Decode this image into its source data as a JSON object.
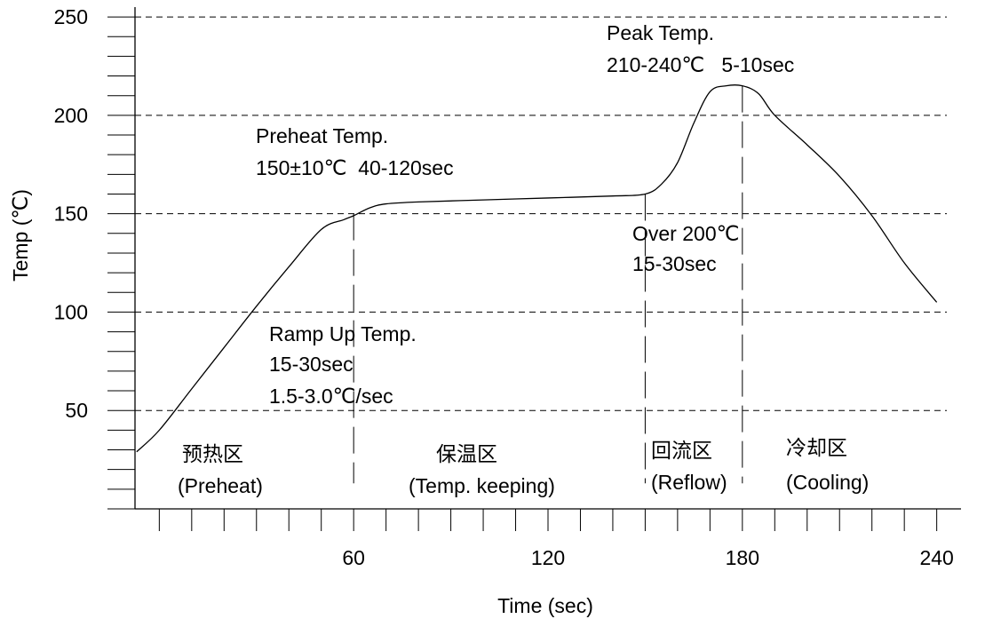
{
  "chart_data": {
    "type": "line",
    "xlabel": "Time (sec)",
    "ylabel": "Temp (℃)",
    "xlim": [
      -7.5,
      247.5
    ],
    "ylim": [
      0,
      255
    ],
    "x_ticks": [
      60,
      120,
      180,
      240
    ],
    "x_tick_labels": [
      "60",
      "120",
      "180",
      "240"
    ],
    "y_ticks": [
      50,
      100,
      150,
      200,
      250
    ],
    "y_tick_labels": [
      "50",
      "100",
      "150",
      "200",
      "250"
    ],
    "x_minor_step": 10,
    "y_minor_step": 10,
    "grid": "dashed horizontal lines at 50, 100, 150, 200, 250",
    "series": [
      {
        "x": [
          -7,
          0,
          10,
          20,
          30,
          40,
          50,
          57,
          60,
          65,
          70,
          80,
          100,
          120,
          140,
          150,
          155,
          160,
          165,
          170,
          175,
          180,
          185,
          190,
          200,
          210,
          220,
          230,
          240
        ],
        "y": [
          29,
          40,
          61,
          82,
          103,
          123,
          142,
          147,
          149,
          153,
          155,
          156,
          157,
          158,
          159,
          160,
          165,
          176,
          196,
          212,
          215,
          215,
          211,
          200,
          185,
          169,
          149,
          125,
          105
        ]
      }
    ],
    "markers": [
      {
        "x": 60,
        "y_from": 13,
        "y_to": 150
      },
      {
        "x": 150,
        "y_from": 13,
        "y_to": 160
      },
      {
        "x": 180,
        "y_from": 13,
        "y_to": 215
      }
    ],
    "annotations": [
      {
        "lines": [
          "Peak Temp.",
          "210-240℃   5-10sec"
        ]
      },
      {
        "lines": [
          "Preheat Temp.",
          "150±10℃  40-120sec"
        ]
      },
      {
        "lines": [
          "Over 200℃",
          "15-30sec"
        ]
      },
      {
        "lines": [
          "Ramp Up Temp.",
          "15-30sec",
          "1.5-3.0℃/sec"
        ]
      }
    ],
    "zones": [
      {
        "cn": "预热区",
        "en": "(Preheat)"
      },
      {
        "cn": "保温区",
        "en": "(Temp. keeping)"
      },
      {
        "cn": "回流区",
        "en": "(Reflow)"
      },
      {
        "cn": "冷却区",
        "en": "(Cooling)"
      }
    ]
  }
}
